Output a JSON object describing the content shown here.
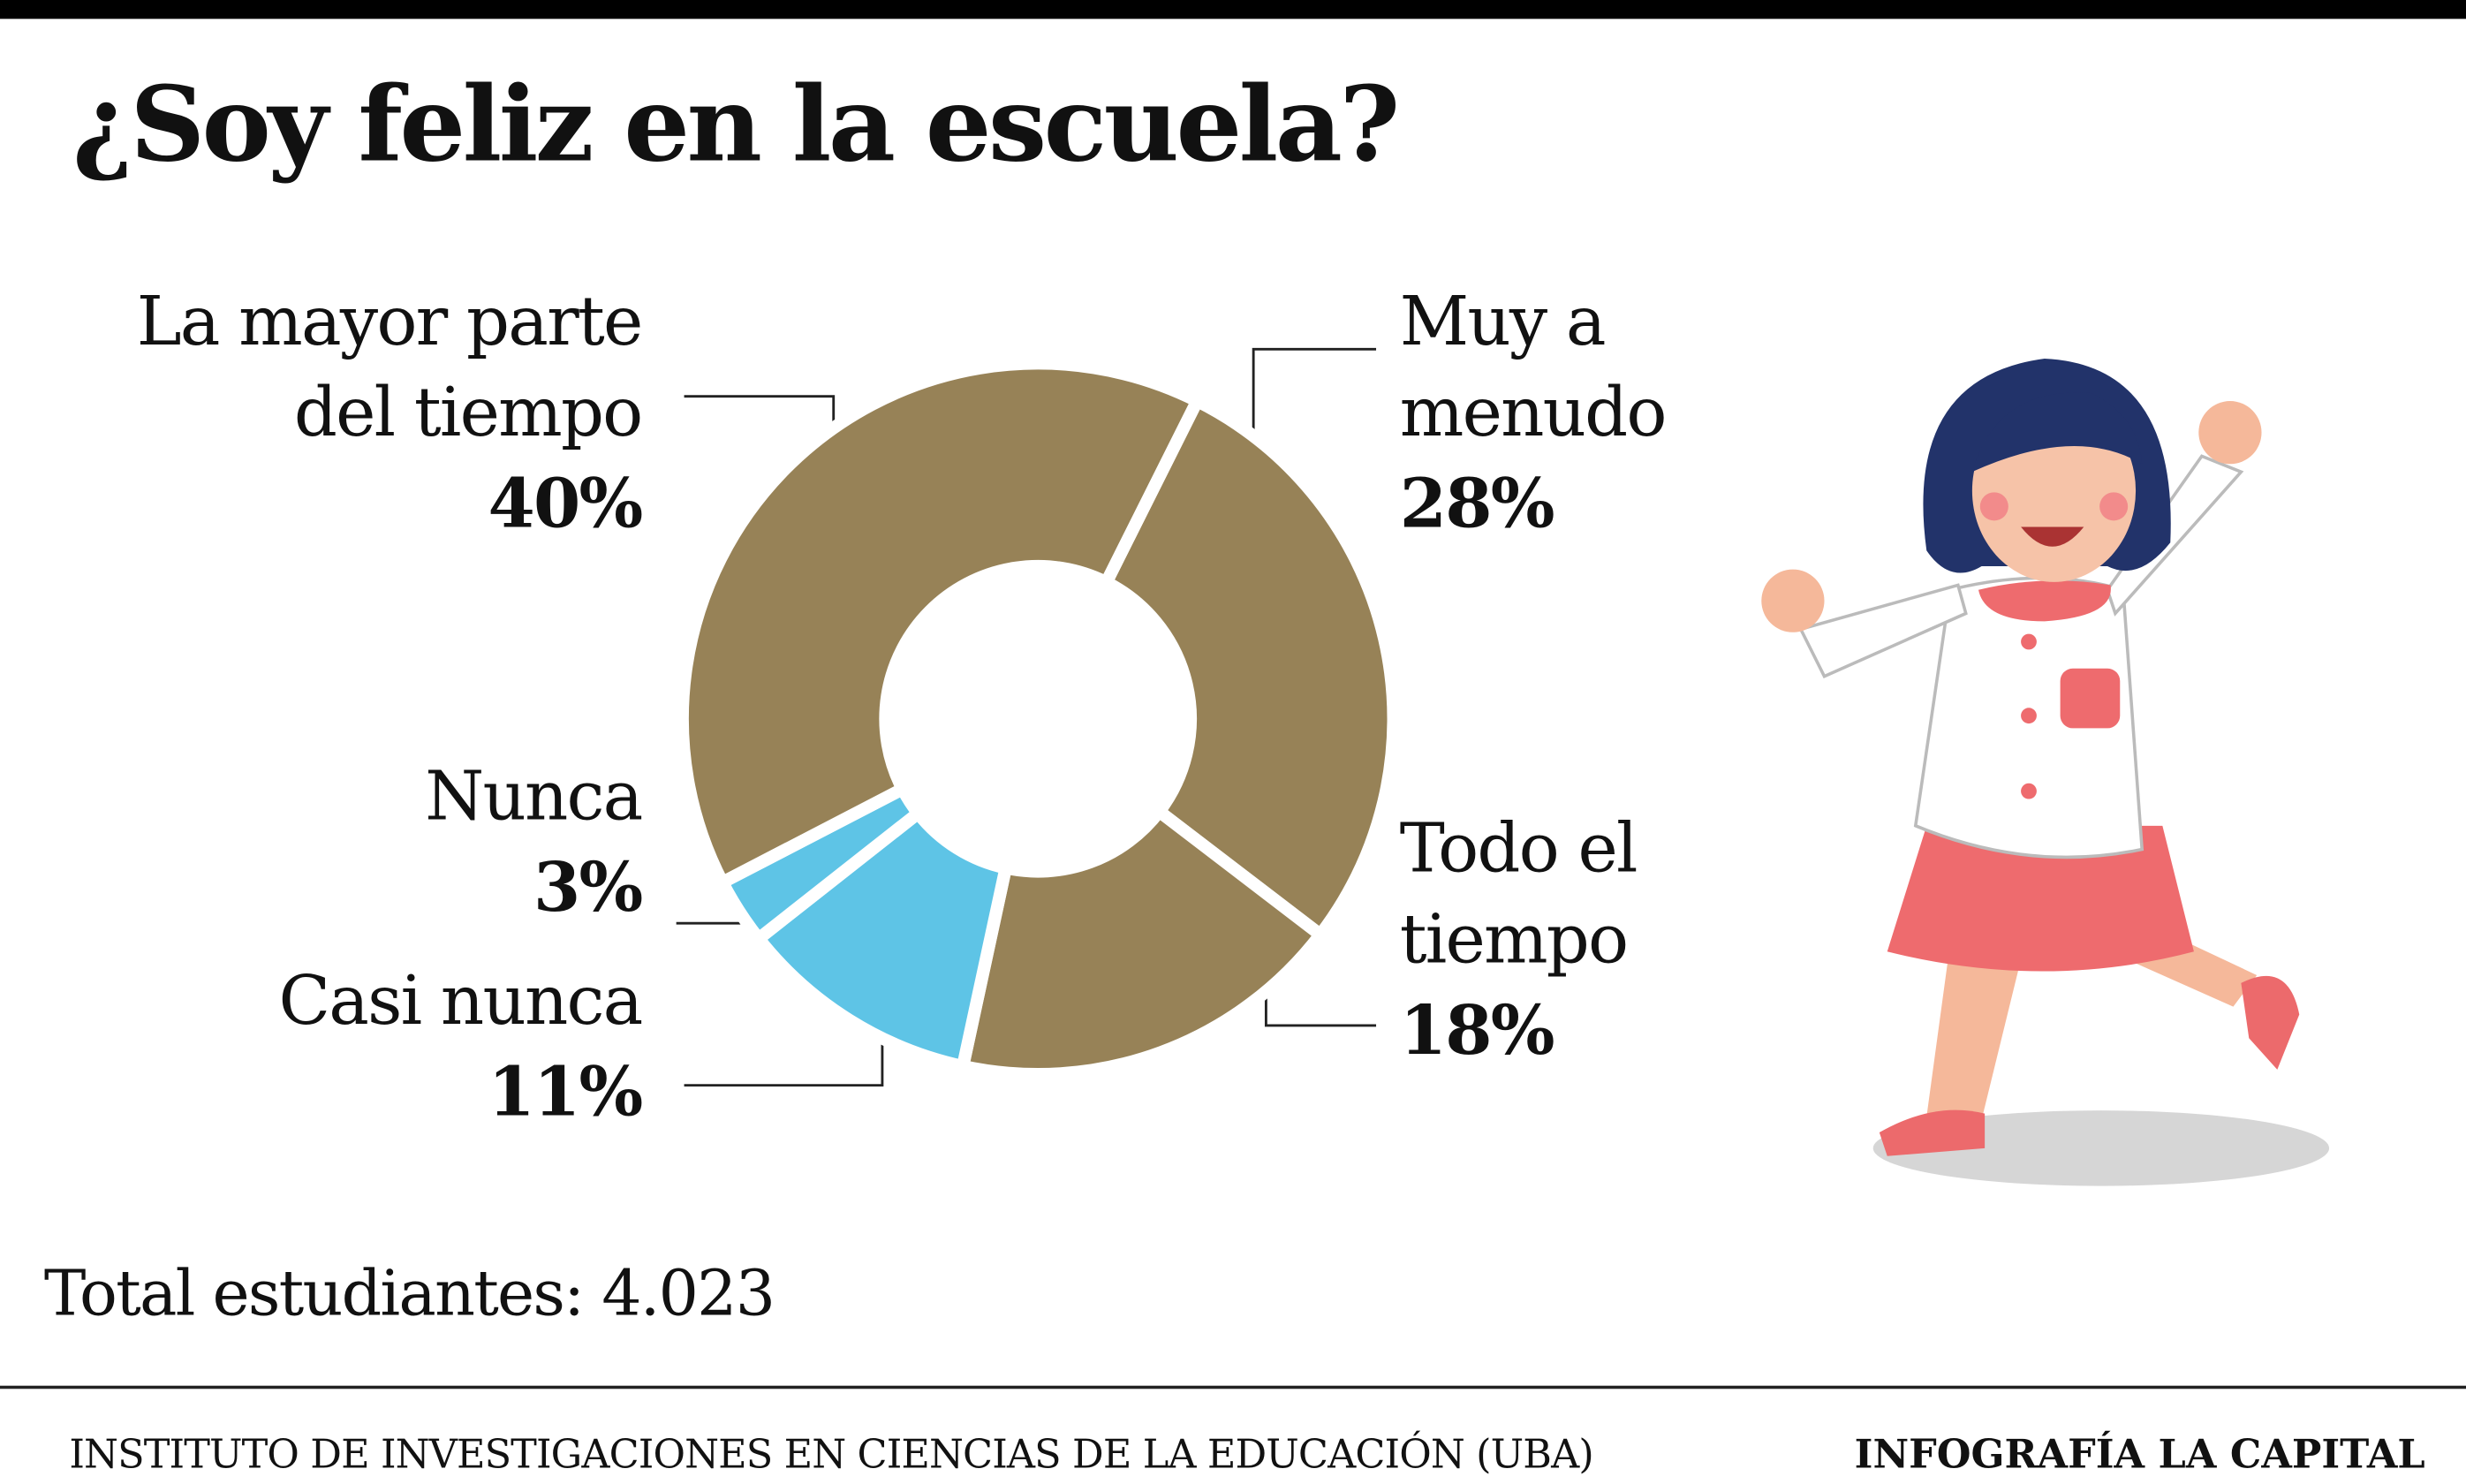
{
  "chart_data": {
    "type": "donut",
    "title": "¿Soy feliz en la escuela?",
    "categories": [
      "Muy a menudo",
      "Todo el tiempo",
      "Casi nunca",
      "Nunca",
      "La mayor parte del tiempo"
    ],
    "values": [
      28,
      18,
      11,
      3,
      40
    ],
    "value_labels": [
      "28%",
      "18%",
      "11%",
      "3%",
      "40%"
    ],
    "colors": [
      "#978257",
      "#978257",
      "#5ec4e6",
      "#5ec4e6",
      "#978257"
    ],
    "note": "Total estudiantes: 4.023",
    "source": "INSTITUTO DE INVESTIGACIONES EN CIENCIAS DE LA EDUCACIÓN (UBA)",
    "credit": "INFOGRAFÍA LA CAPITAL"
  }
}
